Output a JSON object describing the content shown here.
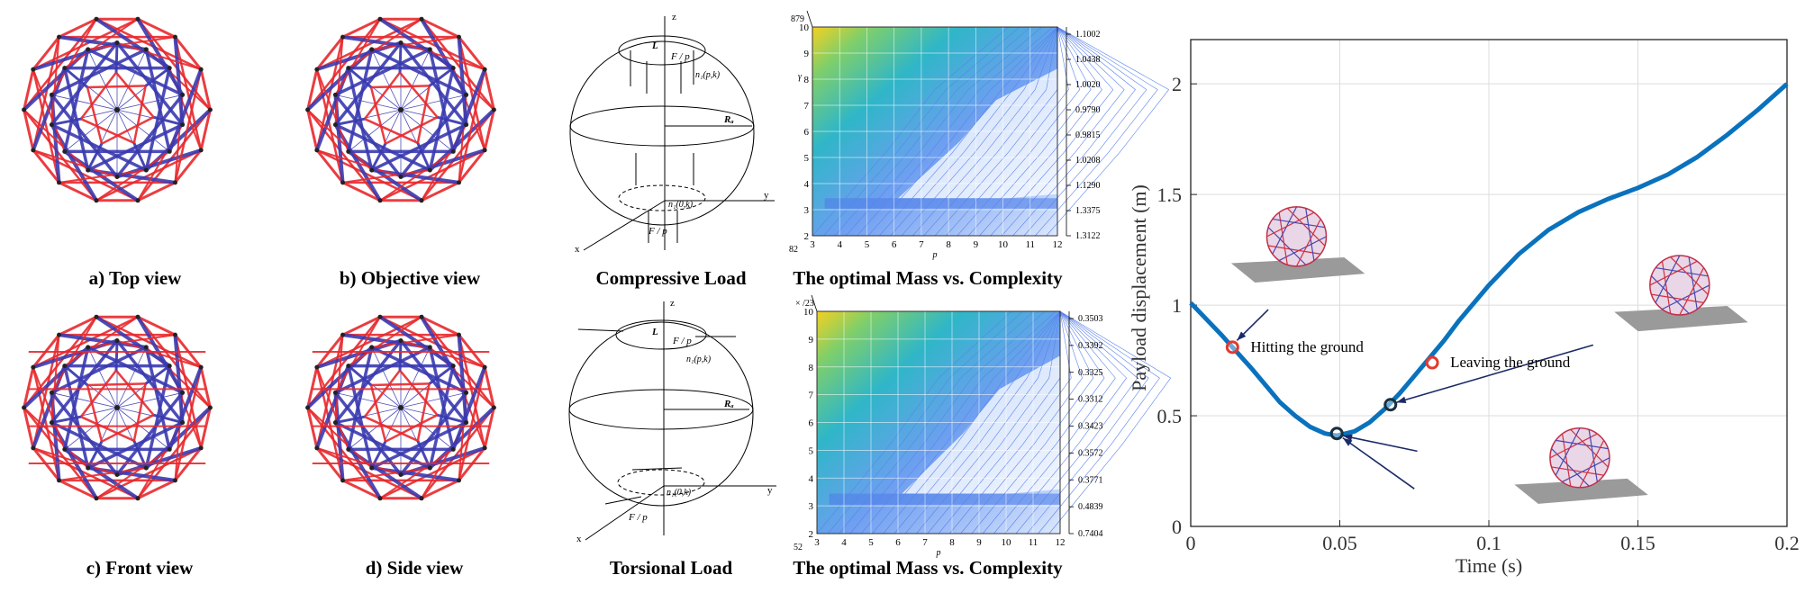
{
  "colors": {
    "red": "#e8282c",
    "blue": "#3a3ab0",
    "curve": "#0a72bd",
    "marker_red": "#e23a2f",
    "marker_dark": "#1a2f3f"
  },
  "views": {
    "top": "a) Top view",
    "objective": "b) Objective view",
    "front": "c) Front view",
    "side": "d) Side view"
  },
  "loads": {
    "compressive": {
      "caption": "Compressive Load",
      "labels": {
        "z": "z",
        "x": "x",
        "y": "y",
        "L": "L",
        "Fp": "F / p",
        "Fp_bottom": "F / p",
        "n_top": "n₁(p,k)",
        "n_bottom": "n₁(0,k)",
        "Ra": "Rₐ"
      }
    },
    "torsional": {
      "caption": "Torsional Load",
      "labels": {
        "z": "z",
        "x": "x",
        "y": "y",
        "L": "L",
        "Fp": "F / p",
        "Fp_bottom": "F / p",
        "n_top": "n₁(p,k)",
        "n_bottom": "n₁(0,k)",
        "Ra": "Rₐ"
      }
    }
  },
  "contours": {
    "top": {
      "caption": "The optimal Mass vs. Complexity",
      "corner_top": "879",
      "corner_bottom": "82",
      "x_ticks": [
        "3",
        "4",
        "5",
        "6",
        "7",
        "8",
        "9",
        "10",
        "11",
        "12"
      ],
      "y_ticks": [
        "10",
        "9",
        "8",
        "7",
        "6",
        "5",
        "4",
        "3",
        "2"
      ],
      "xlabel": "p",
      "ylabel": "γ",
      "right_labels": [
        "1.1002",
        "1.0438",
        "1.0020",
        "0.9790",
        "0.9815",
        "1.0208",
        "1.1290",
        "1.3375",
        "1.3122"
      ]
    },
    "bottom": {
      "caption": "The optimal Mass vs. Complexity",
      "corner_top": "× /23",
      "corner_bottom": "52",
      "x_ticks": [
        "3",
        "4",
        "5",
        "6",
        "7",
        "8",
        "9",
        "10",
        "11",
        "12"
      ],
      "y_ticks": [
        "10",
        "9",
        "8",
        "7",
        "6",
        "5",
        "4",
        "3",
        "2"
      ],
      "xlabel": "p",
      "right_labels": [
        "0.3503",
        "0.3392",
        "0.3325",
        "0.3312",
        "0.3423",
        "0.3572",
        "0.3771",
        "0.4839",
        "0.7404"
      ]
    }
  },
  "chart_data": {
    "type": "line",
    "title": "",
    "xlabel": "Time (s)",
    "ylabel": "Payload displacement (m)",
    "xlim": [
      0,
      0.2
    ],
    "ylim": [
      0,
      2.2
    ],
    "x_ticks": [
      "0",
      "0.05",
      "0.1",
      "0.15",
      "0.2"
    ],
    "y_ticks": [
      "0",
      "0.5",
      "1",
      "1.5",
      "2"
    ],
    "grid": true,
    "series": [
      {
        "x": [
          0,
          0.005,
          0.01,
          0.014,
          0.02,
          0.025,
          0.03,
          0.035,
          0.04,
          0.045,
          0.049,
          0.055,
          0.06,
          0.065,
          0.07,
          0.075,
          0.08,
          0.085,
          0.09,
          0.1,
          0.11,
          0.12,
          0.13,
          0.14,
          0.15,
          0.16,
          0.17,
          0.18,
          0.19,
          0.2
        ],
        "y": [
          1.01,
          0.94,
          0.87,
          0.81,
          0.72,
          0.64,
          0.56,
          0.5,
          0.45,
          0.42,
          0.41,
          0.43,
          0.47,
          0.53,
          0.6,
          0.68,
          0.76,
          0.84,
          0.93,
          1.09,
          1.23,
          1.34,
          1.42,
          1.48,
          1.53,
          1.59,
          1.67,
          1.77,
          1.88,
          2.0
        ]
      }
    ],
    "annotations": [
      {
        "text": "Hitting the ground",
        "x": 0.014,
        "y": 0.81,
        "marker": "red-circle"
      },
      {
        "text": "Leaving the ground",
        "x": 0.081,
        "y": 0.74,
        "marker": "red-circle"
      },
      {
        "text": "",
        "x": 0.049,
        "y": 0.42,
        "marker": "dark-circle"
      },
      {
        "text": "",
        "x": 0.067,
        "y": 0.55,
        "marker": "dark-circle"
      }
    ]
  }
}
